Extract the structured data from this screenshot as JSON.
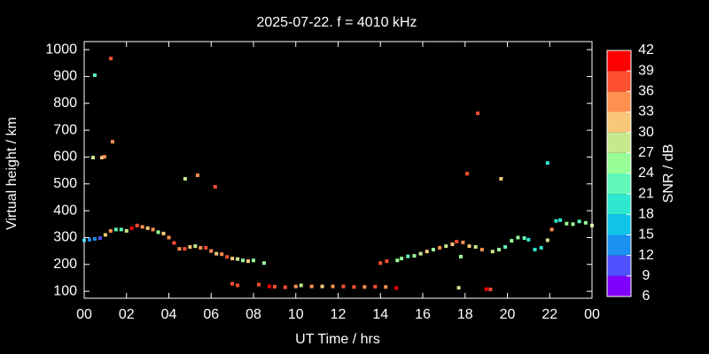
{
  "chart_data": {
    "type": "scatter",
    "title": "2025-07-22. f = 4010 kHz",
    "x_label": "UT Time / hrs",
    "y_label": "Virtual height / km",
    "xlim": [
      0,
      24
    ],
    "ylim": [
      74,
      1030
    ],
    "xticks": [
      {
        "value": 0,
        "label": "00"
      },
      {
        "value": 2,
        "label": "02"
      },
      {
        "value": 4,
        "label": "04"
      },
      {
        "value": 6,
        "label": "06"
      },
      {
        "value": 8,
        "label": "08"
      },
      10,
      12,
      14,
      16,
      18,
      20,
      22,
      {
        "value": 24,
        "label": "00"
      }
    ],
    "yticks": [
      100,
      200,
      300,
      400,
      500,
      600,
      700,
      800,
      900,
      1000
    ],
    "colorbar": {
      "label": "SNR / dB",
      "lim": [
        6,
        42
      ],
      "ticks": [
        6,
        9,
        12,
        15,
        18,
        21,
        24,
        27,
        30,
        33,
        36,
        39,
        42
      ],
      "colors": [
        "#8000ff",
        "#5050ff",
        "#1a90f0",
        "#10c4e8",
        "#30e8d0",
        "#60f8b8",
        "#98ff98",
        "#c8e890",
        "#f8c878",
        "#ff9050",
        "#ff5030",
        "#ff0000"
      ]
    },
    "x": [
      0.5,
      1.26,
      1.34,
      0.42,
      0.84,
      0.96,
      4.77,
      5.36,
      6.19,
      18.6,
      18.1,
      19.7,
      21.9,
      17.7,
      17.8,
      0,
      0.25,
      0.5,
      0.75,
      1.0,
      1.25,
      1.5,
      1.75,
      2.0,
      2.25,
      2.5,
      2.75,
      3.0,
      3.25,
      3.5,
      3.75,
      4.0,
      4.25,
      4.5,
      4.75,
      5.0,
      5.25,
      5.5,
      5.75,
      6.0,
      6.25,
      6.5,
      6.75,
      7.0,
      7.25,
      7.5,
      7.75,
      8.0,
      8.5,
      7.0,
      7.25,
      8.25,
      8.75,
      9.0,
      9.5,
      10.0,
      10.25,
      10.75,
      11.25,
      11.75,
      12.25,
      12.75,
      13.25,
      13.75,
      14.25,
      14.75,
      14.0,
      14.3,
      14.8,
      15.0,
      15.3,
      15.6,
      15.9,
      16.2,
      16.5,
      16.8,
      17.1,
      17.4,
      17.6,
      17.9,
      18.2,
      18.5,
      18.8,
      19.0,
      19.2,
      19.3,
      19.6,
      19.9,
      20.2,
      20.5,
      20.8,
      21.0,
      21.3,
      21.6,
      21.9,
      22.1,
      22.3,
      22.5,
      22.8,
      23.1,
      23.4,
      23.7,
      24.0
    ],
    "y": [
      905,
      967,
      657,
      598,
      598,
      601,
      519,
      532,
      489,
      763,
      538,
      519,
      578,
      113,
      229,
      290,
      292,
      295,
      298,
      310,
      325,
      330,
      330,
      325,
      335,
      345,
      340,
      335,
      330,
      320,
      315,
      300,
      280,
      258,
      258,
      265,
      268,
      262,
      262,
      250,
      240,
      238,
      228,
      222,
      220,
      215,
      212,
      215,
      205,
      128,
      122,
      125,
      118,
      117,
      115,
      118,
      122,
      118,
      118,
      118,
      118,
      116,
      116,
      117,
      116,
      112,
      205,
      212,
      215,
      222,
      230,
      232,
      240,
      248,
      255,
      262,
      268,
      275,
      285,
      282,
      268,
      265,
      255,
      108,
      107,
      248,
      255,
      265,
      288,
      300,
      298,
      292,
      255,
      262,
      290,
      330,
      362,
      365,
      352,
      350,
      360,
      355,
      345
    ],
    "snr": [
      21,
      36,
      33,
      27,
      30,
      33,
      27,
      33,
      36,
      36,
      36,
      30,
      18,
      27,
      24,
      15,
      12,
      12,
      9,
      30,
      33,
      21,
      21,
      27,
      39,
      36,
      33,
      30,
      33,
      24,
      30,
      33,
      36,
      33,
      36,
      30,
      27,
      33,
      36,
      33,
      30,
      33,
      36,
      30,
      27,
      24,
      30,
      24,
      24,
      36,
      36,
      36,
      39,
      36,
      36,
      33,
      27,
      33,
      30,
      33,
      36,
      36,
      33,
      36,
      33,
      39,
      36,
      36,
      24,
      24,
      21,
      24,
      27,
      30,
      24,
      33,
      27,
      30,
      36,
      33,
      30,
      27,
      33,
      39,
      36,
      27,
      24,
      21,
      24,
      24,
      21,
      18,
      18,
      18,
      27,
      33,
      18,
      18,
      24,
      24,
      21,
      24,
      27
    ]
  }
}
